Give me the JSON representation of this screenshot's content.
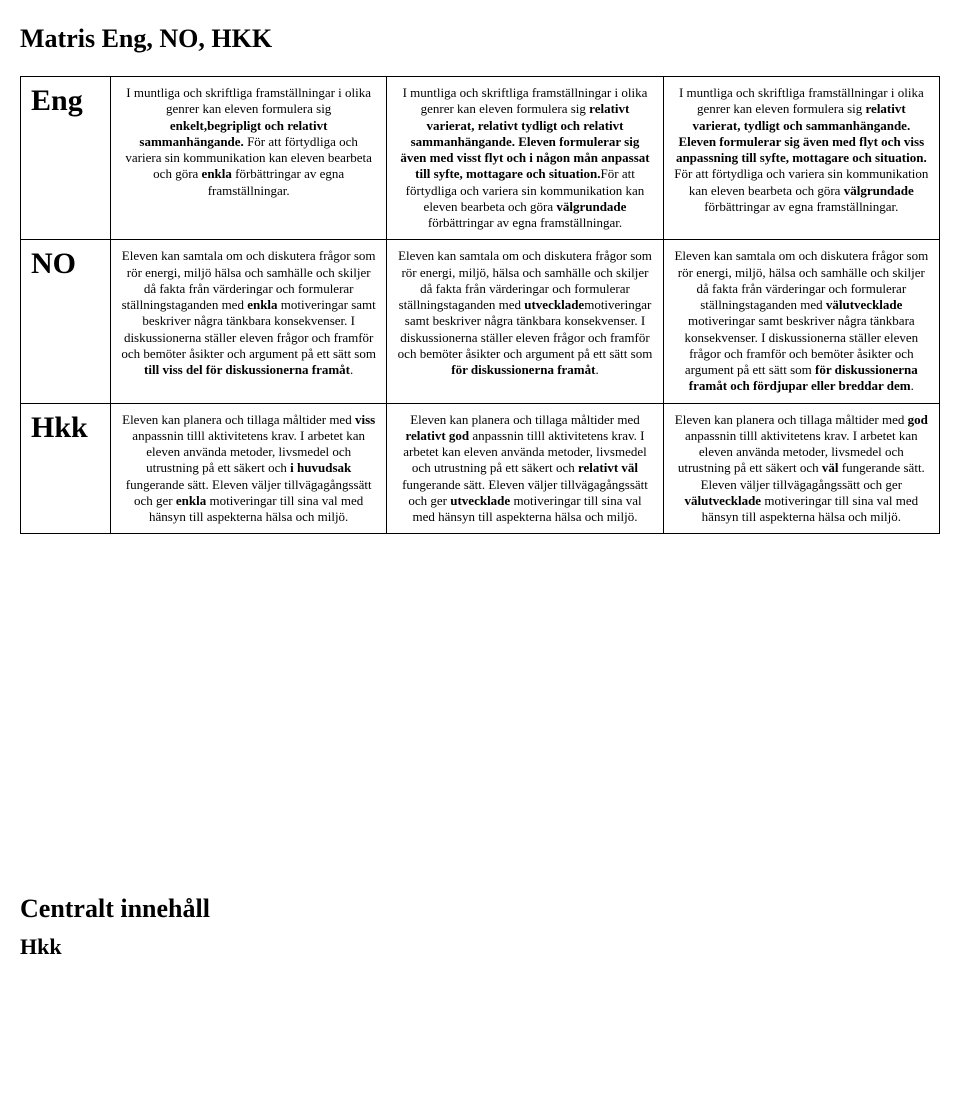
{
  "page": {
    "title": "Matris Eng, NO, HKK",
    "section_heading": "Centralt innehåll",
    "sub_heading": "Hkk"
  },
  "matrix": {
    "rows": [
      {
        "subject": "Eng",
        "cells": [
          "I muntliga och skriftliga framställningar i olika genrer kan eleven formulera sig <b>enkelt,begripligt och relativt sammanhängande.</b> För att förtydliga och variera sin kommunikation kan eleven bearbeta och göra <b>enkla</b> förbättringar av egna framställningar.",
          "I muntliga och skriftliga framställningar i olika genrer kan eleven formulera sig <b>relativt varierat, relativt tydligt och relativt sammanhängande. Eleven formulerar sig även med visst flyt och i någon mån anpassat till syfte, mottagare och situation.</b>För att förtydliga och variera sin kommunikation kan eleven bearbeta och göra <b>välgrundade</b> förbättringar av egna framställningar.",
          "I muntliga och skriftliga framställningar i olika genrer kan eleven formulera sig <b>relativt varierat, tydligt och sammanhängande. Eleven formulerar sig även med flyt och viss anpassning till syfte, mottagare och situation.</b> För att förtydliga och variera sin kommunikation kan eleven bearbeta och göra <b>välgrundade</b> förbättringar av egna framställningar."
        ]
      },
      {
        "subject": "NO",
        "cells": [
          "Eleven kan samtala om och diskutera frågor som rör energi, miljö hälsa och samhälle och skiljer då fakta från värderingar och formulerar ställningstaganden med <b>enkla</b> motiveringar samt beskriver några tänkbara konsekvenser. I diskussionerna ställer eleven frågor och framför och bemöter åsikter och argument på ett sätt som <b>till viss del för diskussionerna framåt</b>.",
          "Eleven kan samtala om och diskutera frågor som rör energi, miljö, hälsa och samhälle och skiljer då fakta från värderingar och formulerar ställningstaganden med <b>utvecklade</b>motiveringar samt beskriver några tänkbara konsekvenser. I diskussionerna ställer eleven frågor och framför och bemöter åsikter och argument på ett sätt som <b>för diskussionerna framåt</b>.",
          "Eleven kan samtala om och diskutera frågor som rör energi, miljö, hälsa och samhälle och skiljer då fakta från värderingar och formulerar ställningstaganden med <b>välutvecklade</b> motiveringar samt beskriver några tänkbara konsekvenser. I diskussionerna ställer eleven frågor och framför och bemöter åsikter och argument på ett sätt som <b>för diskussionerna framåt och fördjupar eller breddar dem</b>."
        ]
      },
      {
        "subject": "Hkk",
        "cells": [
          "Eleven kan planera och tillaga måltider med <b>viss</b> anpassnin tilll aktivitetens krav. I arbetet kan eleven använda metoder, livsmedel och utrustning på ett säkert och <b>i huvudsak</b> fungerande sätt. Eleven väljer tillvägagångssätt och ger <b>enkla</b> motiveringar till sina val med hänsyn till aspekterna hälsa och miljö.",
          "Eleven kan planera och tillaga måltider med <b>relativt god</b> anpassnin tilll aktivitetens krav. I arbetet kan eleven använda metoder, livsmedel och utrustning på ett säkert och <b>relativt väl</b> fungerande sätt. Eleven väljer tillvägagångssätt och ger <b>utvecklade</b> motiveringar till sina val med hänsyn till aspekterna hälsa och miljö.",
          "Eleven kan planera och tillaga måltider med <b>god</b> anpassnin tilll aktivitetens krav. I arbetet kan eleven använda metoder, livsmedel och utrustning på ett säkert och <b>väl</b> fungerande sätt. Eleven väljer tillvägagångssätt och ger <b>välutvecklade</b> motiveringar till sina val med hänsyn till aspekterna hälsa och miljö."
        ]
      }
    ]
  }
}
